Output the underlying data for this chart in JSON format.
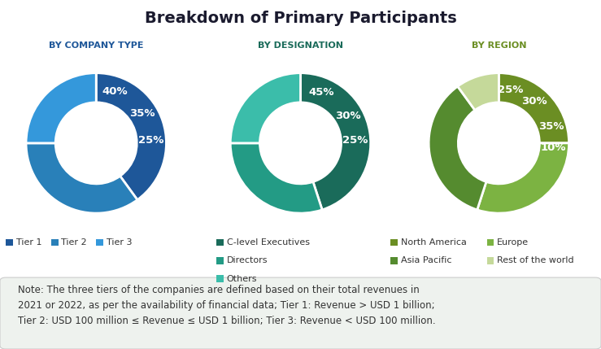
{
  "title": "Breakdown of Primary Participants",
  "title_fontsize": 14,
  "background_color": "#ffffff",
  "chart1_label": "BY COMPANY TYPE",
  "chart1_values": [
    40,
    35,
    25
  ],
  "chart1_labels": [
    "40%",
    "35%",
    "25%"
  ],
  "chart1_colors": [
    "#1e5799",
    "#2980b9",
    "#3498db"
  ],
  "chart1_legend": [
    "Tier 1",
    "Tier 2",
    "Tier 3"
  ],
  "chart1_label_color": "#1e5799",
  "chart2_label": "BY DESIGNATION",
  "chart2_values": [
    45,
    30,
    25
  ],
  "chart2_labels": [
    "45%",
    "30%",
    "25%"
  ],
  "chart2_colors": [
    "#1a6b5a",
    "#239b85",
    "#3bbdaa"
  ],
  "chart2_legend": [
    "C-level Executives",
    "Directors",
    "Others"
  ],
  "chart2_label_color": "#1a6b5a",
  "chart3_label": "BY REGION",
  "chart3_values": [
    25,
    30,
    35,
    10
  ],
  "chart3_labels": [
    "25%",
    "30%",
    "35%",
    "10%"
  ],
  "chart3_colors": [
    "#6b8e23",
    "#7cb342",
    "#558b2f",
    "#c5d99a"
  ],
  "chart3_legend": [
    "North America",
    "Europe",
    "Asia Pacific",
    "Rest of the world"
  ],
  "chart3_label_color": "#6b8e23",
  "note_text": "Note: The three tiers of the companies are defined based on their total revenues in\n2021 or 2022, as per the availability of financial data; Tier 1: Revenue > USD 1 billion;\nTier 2: USD 100 million ≤ Revenue ≤ USD 1 billion; Tier 3: Revenue < USD 100 million.",
  "note_fontsize": 8.5
}
